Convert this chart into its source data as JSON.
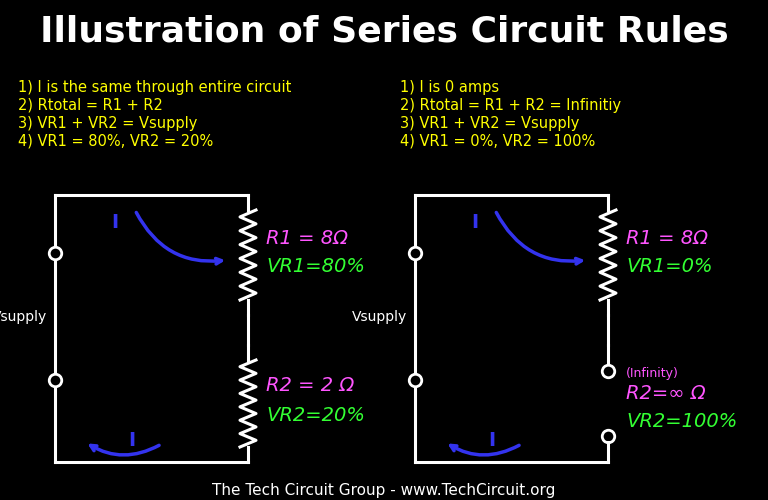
{
  "title": "Illustration of Series Circuit Rules",
  "title_color": "#FFFFFF",
  "title_fontsize": 26,
  "bg_color": "#000000",
  "footer": "The Tech Circuit Group - www.TechCircuit.org",
  "footer_color": "#FFFFFF",
  "footer_fontsize": 11,
  "left_rules": [
    "1) I is the same through entire circuit",
    "2) Rtotal = R1 + R2",
    "3) VR1 + VR2 = Vsupply",
    "4) VR1 = 80%, VR2 = 20%"
  ],
  "right_rules": [
    "1) I is 0 amps",
    "2) Rtotal = R1 + R2 = Infinitiy",
    "3) VR1 + VR2 = Vsupply",
    "4) VR1 = 0%, VR2 = 100%"
  ],
  "rules_color": "#FFFF00",
  "rules_fontsize": 10.5,
  "vsupply_color": "#FFFFFF",
  "vsupply_fontsize": 10,
  "current_color": "#3333EE",
  "circuit_color": "#FFFFFF",
  "r1_label_left": "R1 = 8Ω",
  "vr1_label_left": "VR1=80%",
  "r2_label_left": "R2 = 2 Ω",
  "vr2_label_left": "VR2=20%",
  "r1_label_right": "R1 = 8Ω",
  "vr1_label_right": "VR1=0%",
  "r2_label_right": "R2=∞ Ω",
  "vr2_label_right": "VR2=100%",
  "infinity_label": "(Infinity)",
  "r_color": "#FF55FF",
  "vr_color": "#33FF33",
  "label_fontsize": 14
}
